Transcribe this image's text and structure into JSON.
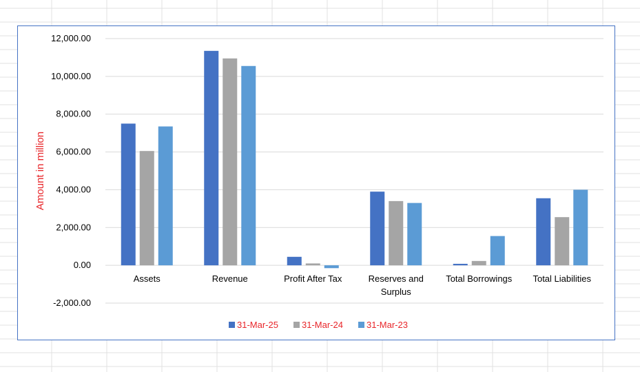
{
  "chart_data": {
    "type": "bar",
    "title": "",
    "xlabel": "",
    "ylabel": "Amount in million",
    "ylim": [
      -2000,
      12000
    ],
    "ytick_step": 2000,
    "ytick_labels": [
      "-2,000.00",
      "0.00",
      "2,000.00",
      "4,000.00",
      "6,000.00",
      "8,000.00",
      "10,000.00",
      "12,000.00"
    ],
    "categories": [
      [
        "Assets"
      ],
      [
        "Revenue"
      ],
      [
        "Profit After Tax"
      ],
      [
        "Reserves and",
        "Surplus"
      ],
      [
        "Total Borrowings"
      ],
      [
        "Total Liabilities"
      ]
    ],
    "series": [
      {
        "name": "31-Mar-25",
        "color": "#4472c4",
        "values": [
          7500,
          11350,
          450,
          3900,
          80,
          3550
        ]
      },
      {
        "name": "31-Mar-24",
        "color": "#a5a5a5",
        "values": [
          6050,
          10950,
          100,
          3400,
          230,
          2550
        ]
      },
      {
        "name": "31-Mar-23",
        "color": "#5b9bd5",
        "values": [
          7350,
          10550,
          -150,
          3300,
          1550,
          4000
        ]
      }
    ],
    "grid": true,
    "legend_position": "bottom",
    "label_color": "#e8262a"
  }
}
